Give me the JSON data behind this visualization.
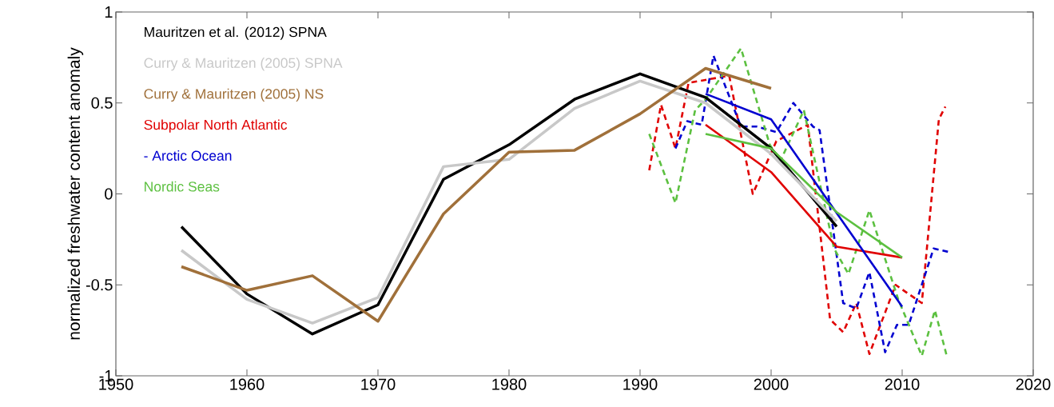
{
  "chart_data": {
    "type": "line",
    "ylabel": "normalized freshwater content anomaly",
    "xlim": [
      1950,
      2020
    ],
    "ylim": [
      -1,
      1
    ],
    "xticks": [
      1950,
      1960,
      1970,
      1980,
      1990,
      2000,
      2010,
      2020
    ],
    "yticks": [
      -1,
      -0.5,
      0,
      0.5,
      1
    ],
    "grid": false,
    "legend": "top left",
    "marker": "none",
    "series": [
      {
        "name": "Mauritzen et al. (2012) SPNA",
        "color": "#000000",
        "line_style": "solid",
        "x": [
          1955,
          1960,
          1965,
          1970,
          1975,
          1980,
          1985,
          1990,
          1995,
          2000,
          2005
        ],
        "values": [
          -0.18,
          -0.55,
          -0.77,
          -0.61,
          0.08,
          0.27,
          0.52,
          0.66,
          0.53,
          0.25,
          -0.18
        ]
      },
      {
        "name": "Curry & Mauritzen (2005) SPNA",
        "color": "#c8c8c8",
        "line_style": "solid",
        "x": [
          1955,
          1960,
          1965,
          1970,
          1975,
          1980,
          1985,
          1990,
          1995,
          2000,
          2005
        ],
        "values": [
          -0.31,
          -0.58,
          -0.71,
          -0.57,
          0.15,
          0.19,
          0.47,
          0.62,
          0.5,
          0.22,
          -0.15
        ]
      },
      {
        "name": "Curry & Mauritzen (2005) NS",
        "color": "#a0703a",
        "line_style": "solid",
        "x": [
          1955,
          1960,
          1965,
          1970,
          1975,
          1980,
          1985,
          1990,
          1995,
          2000
        ],
        "values": [
          -0.4,
          -0.53,
          -0.45,
          -0.7,
          -0.11,
          0.23,
          0.24,
          0.44,
          0.69,
          0.58
        ]
      },
      {
        "name": "Subpolar North Atlantic",
        "color": "#e00000",
        "line_style": "solid",
        "x": [
          1995,
          2000,
          2005,
          2010
        ],
        "values": [
          0.38,
          0.12,
          -0.29,
          -0.35
        ]
      },
      {
        "name": "- Arctic Ocean",
        "color": "#0000d0",
        "line_style": "solid",
        "x": [
          1995,
          2000,
          2010
        ],
        "values": [
          0.55,
          0.41,
          -0.62
        ]
      },
      {
        "name": "Nordic Seas",
        "color": "#5cc040",
        "line_style": "solid",
        "x": [
          1995,
          2000,
          2005,
          2010
        ],
        "values": [
          0.33,
          0.25,
          -0.1,
          -0.35
        ]
      },
      {
        "color": "#e00000",
        "line_style": "dashed",
        "x": [
          1990.7,
          1991.6,
          1992.7,
          1993.7,
          1996.8,
          1998.6,
          2000.4,
          2002.8,
          2004.5,
          2005.5,
          2006.5,
          2007.5,
          2009.5,
          2011.5,
          2012.8,
          2013.3
        ],
        "values": [
          0.13,
          0.49,
          0.25,
          0.61,
          0.65,
          0.0,
          0.29,
          0.38,
          -0.69,
          -0.76,
          -0.6,
          -0.88,
          -0.5,
          -0.6,
          0.41,
          0.48
        ]
      },
      {
        "color": "#0000d0",
        "line_style": "dashed",
        "x": [
          1992.7,
          1993.6,
          1994.7,
          1995.6,
          1997.7,
          1998.9,
          2000.4,
          2001.7,
          2003.2,
          2003.7,
          2005.5,
          2006.5,
          2007.5,
          2008.7,
          2009.6,
          2010.5,
          2012.4,
          2013.6
        ],
        "values": [
          0.25,
          0.4,
          0.38,
          0.76,
          0.37,
          0.37,
          0.34,
          0.5,
          0.37,
          0.35,
          -0.6,
          -0.63,
          -0.43,
          -0.87,
          -0.72,
          -0.72,
          -0.3,
          -0.32
        ]
      },
      {
        "color": "#5cc040",
        "line_style": "dashed",
        "x": [
          1990.7,
          1992.7,
          1994.2,
          1995,
          1997.7,
          1999.9,
          2000.7,
          2002.5,
          2004.8,
          2005.9,
          2007.5,
          2009.7,
          2011.5,
          2012.5,
          2013.4
        ],
        "values": [
          0.33,
          -0.05,
          0.46,
          0.52,
          0.8,
          0.27,
          0.18,
          0.46,
          -0.3,
          -0.44,
          -0.09,
          -0.58,
          -0.89,
          -0.64,
          -0.89
        ]
      }
    ]
  }
}
